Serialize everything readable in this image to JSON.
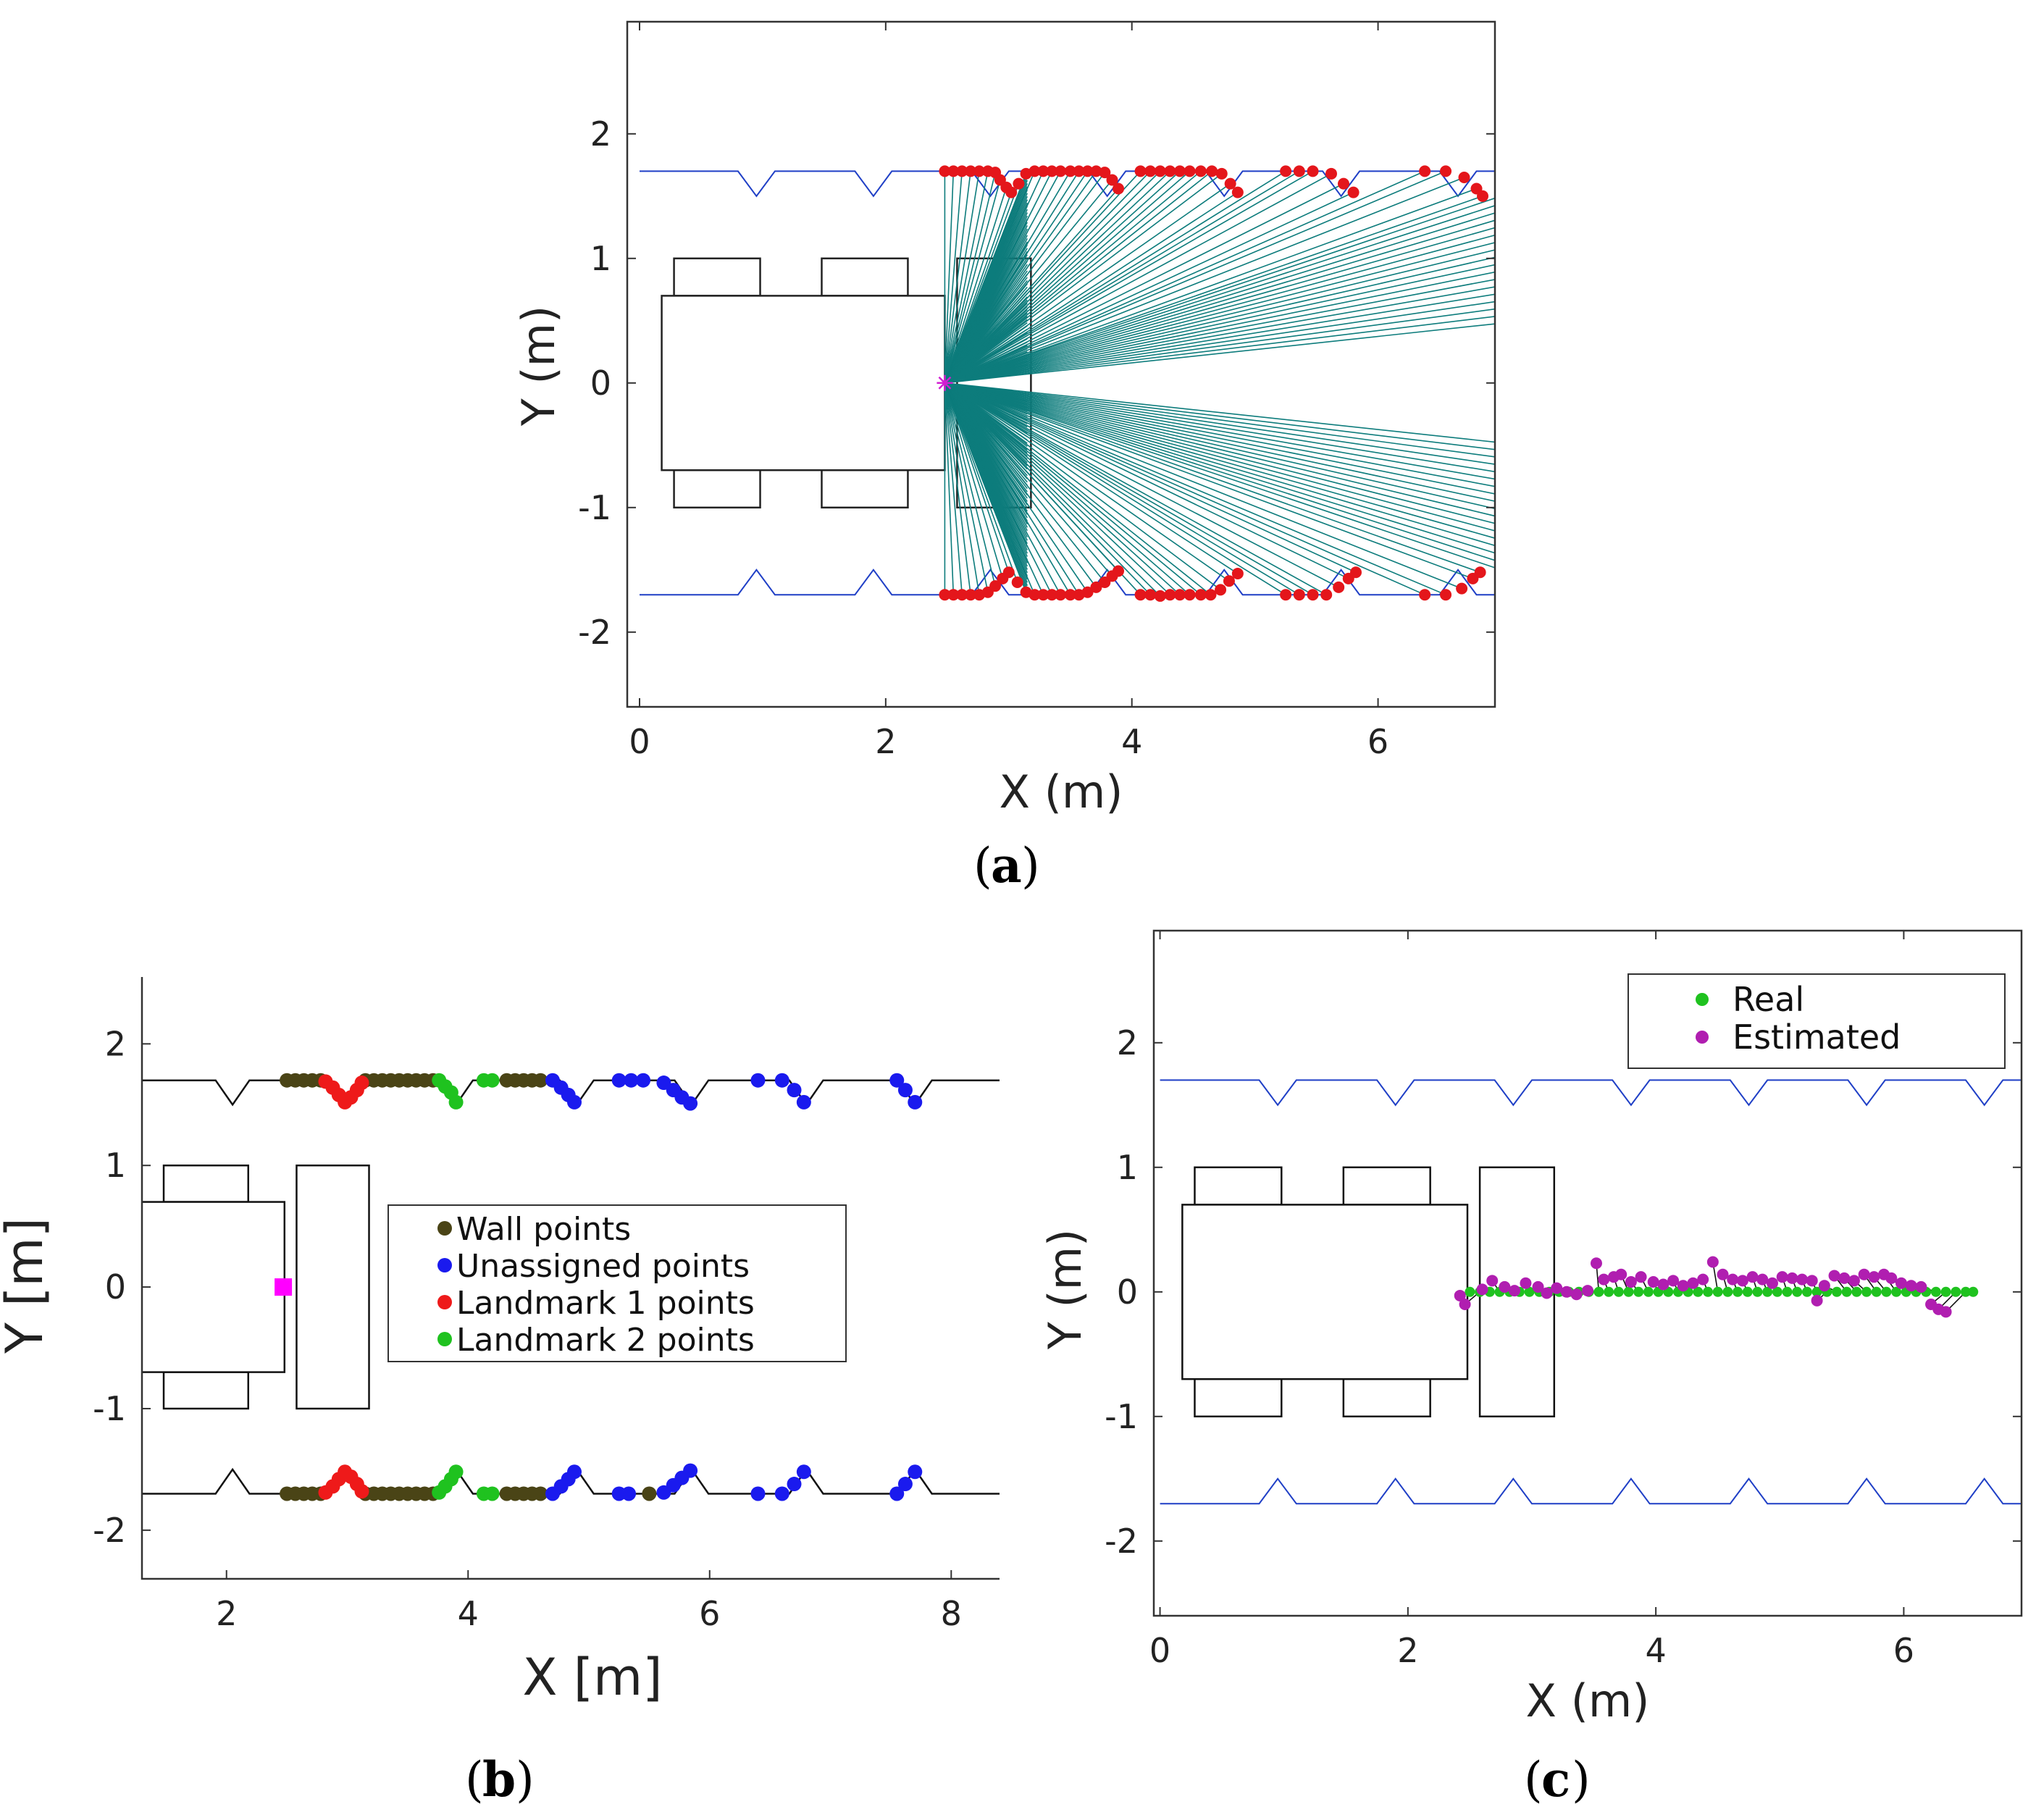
{
  "chart_data": [
    {
      "id": "a",
      "type": "scatter",
      "caption": "a",
      "xlabel": "X (m)",
      "ylabel": "Y (m)",
      "xlim": [
        -0.1,
        6.95
      ],
      "ylim": [
        -2.6,
        2.9
      ],
      "xticks": [
        0,
        2,
        4,
        6
      ],
      "yticks": [
        2,
        1,
        0,
        -1,
        -2
      ],
      "xtick_labels": [
        "0",
        "2",
        "4",
        "6"
      ],
      "ytick_labels": [
        "2",
        "1",
        "0",
        "-1",
        "-2"
      ],
      "sensor": [
        2.48,
        0
      ],
      "ray_color": "#0d7c7c",
      "wall_color": "#1f3fc6",
      "point_color": "#e4161b",
      "sensor_color": "#d21ed2",
      "detected_top": [
        [
          2.48,
          1.7
        ],
        [
          2.55,
          1.7
        ],
        [
          2.62,
          1.7
        ],
        [
          2.69,
          1.7
        ],
        [
          2.76,
          1.7
        ],
        [
          2.83,
          1.7
        ],
        [
          2.89,
          1.69
        ],
        [
          2.93,
          1.63
        ],
        [
          2.98,
          1.57
        ],
        [
          3.02,
          1.53
        ],
        [
          3.08,
          1.6
        ],
        [
          3.14,
          1.68
        ],
        [
          3.21,
          1.7
        ],
        [
          3.28,
          1.7
        ],
        [
          3.35,
          1.7
        ],
        [
          3.42,
          1.7
        ],
        [
          3.5,
          1.7
        ],
        [
          3.57,
          1.7
        ],
        [
          3.64,
          1.7
        ],
        [
          3.71,
          1.7
        ],
        [
          3.78,
          1.69
        ],
        [
          3.84,
          1.63
        ],
        [
          3.89,
          1.56
        ],
        [
          4.07,
          1.7
        ],
        [
          4.15,
          1.7
        ],
        [
          4.23,
          1.7
        ],
        [
          4.31,
          1.7
        ],
        [
          4.39,
          1.7
        ],
        [
          4.47,
          1.7
        ],
        [
          4.56,
          1.7
        ],
        [
          4.65,
          1.7
        ],
        [
          4.73,
          1.68
        ],
        [
          4.8,
          1.6
        ],
        [
          4.86,
          1.53
        ],
        [
          5.25,
          1.7
        ],
        [
          5.36,
          1.7
        ],
        [
          5.47,
          1.7
        ],
        [
          5.62,
          1.68
        ],
        [
          5.72,
          1.6
        ],
        [
          5.8,
          1.53
        ],
        [
          6.38,
          1.7
        ],
        [
          6.55,
          1.7
        ],
        [
          6.7,
          1.65
        ],
        [
          6.8,
          1.56
        ],
        [
          6.85,
          1.5
        ]
      ],
      "detected_bottom": [
        [
          2.48,
          -1.7
        ],
        [
          2.55,
          -1.7
        ],
        [
          2.62,
          -1.7
        ],
        [
          2.69,
          -1.7
        ],
        [
          2.76,
          -1.7
        ],
        [
          2.83,
          -1.68
        ],
        [
          2.89,
          -1.63
        ],
        [
          2.95,
          -1.57
        ],
        [
          3.0,
          -1.52
        ],
        [
          3.07,
          -1.6
        ],
        [
          3.14,
          -1.68
        ],
        [
          3.21,
          -1.7
        ],
        [
          3.28,
          -1.7
        ],
        [
          3.35,
          -1.7
        ],
        [
          3.42,
          -1.7
        ],
        [
          3.5,
          -1.7
        ],
        [
          3.57,
          -1.7
        ],
        [
          3.64,
          -1.68
        ],
        [
          3.71,
          -1.64
        ],
        [
          3.78,
          -1.6
        ],
        [
          3.84,
          -1.55
        ],
        [
          3.89,
          -1.51
        ],
        [
          4.07,
          -1.7
        ],
        [
          4.15,
          -1.7
        ],
        [
          4.23,
          -1.71
        ],
        [
          4.31,
          -1.7
        ],
        [
          4.39,
          -1.7
        ],
        [
          4.47,
          -1.7
        ],
        [
          4.56,
          -1.7
        ],
        [
          4.64,
          -1.7
        ],
        [
          4.72,
          -1.66
        ],
        [
          4.79,
          -1.59
        ],
        [
          4.86,
          -1.53
        ],
        [
          5.25,
          -1.7
        ],
        [
          5.36,
          -1.7
        ],
        [
          5.47,
          -1.7
        ],
        [
          5.58,
          -1.7
        ],
        [
          5.68,
          -1.64
        ],
        [
          5.76,
          -1.57
        ],
        [
          5.82,
          -1.52
        ],
        [
          6.38,
          -1.7
        ],
        [
          6.55,
          -1.7
        ],
        [
          6.68,
          -1.65
        ],
        [
          6.77,
          -1.57
        ],
        [
          6.83,
          -1.52
        ]
      ]
    },
    {
      "id": "b",
      "type": "scatter",
      "caption": "b",
      "xlabel": "X [m]",
      "ylabel": "Y [m]",
      "xlim": [
        1.3,
        8.4
      ],
      "ylim": [
        -2.4,
        2.55
      ],
      "xticks": [
        2,
        4,
        6,
        8
      ],
      "yticks": [
        2,
        1,
        0,
        -1,
        -2
      ],
      "xtick_labels": [
        "2",
        "4",
        "6",
        "8"
      ],
      "ytick_labels": [
        "2",
        "1",
        "0",
        "-1",
        "-2"
      ],
      "robot_marker": [
        2.47,
        0
      ],
      "robot_marker_color": "#ff00ff",
      "legend": [
        {
          "label": "Wall points",
          "color": "#4a4416"
        },
        {
          "label": "Unassigned points",
          "color": "#1a1aee"
        },
        {
          "label": "Landmark 1 points",
          "color": "#ee1a1a"
        },
        {
          "label": "Landmark 2 points",
          "color": "#1fc21f"
        }
      ],
      "series": [
        {
          "name": "Wall points",
          "color": "#4a4416",
          "points": [
            [
              2.5,
              1.7
            ],
            [
              2.57,
              1.7
            ],
            [
              2.64,
              1.7
            ],
            [
              2.71,
              1.7
            ],
            [
              2.78,
              1.7
            ],
            [
              3.15,
              1.7
            ],
            [
              3.22,
              1.7
            ],
            [
              3.29,
              1.7
            ],
            [
              3.36,
              1.7
            ],
            [
              3.43,
              1.7
            ],
            [
              3.5,
              1.7
            ],
            [
              3.57,
              1.7
            ],
            [
              3.64,
              1.7
            ],
            [
              3.71,
              1.7
            ],
            [
              4.32,
              1.7
            ],
            [
              4.39,
              1.7
            ],
            [
              4.46,
              1.7
            ],
            [
              4.53,
              1.7
            ],
            [
              4.6,
              1.7
            ],
            [
              2.5,
              -1.7
            ],
            [
              2.57,
              -1.7
            ],
            [
              2.64,
              -1.7
            ],
            [
              2.71,
              -1.7
            ],
            [
              2.78,
              -1.7
            ],
            [
              3.15,
              -1.7
            ],
            [
              3.22,
              -1.7
            ],
            [
              3.29,
              -1.7
            ],
            [
              3.36,
              -1.7
            ],
            [
              3.43,
              -1.7
            ],
            [
              3.5,
              -1.7
            ],
            [
              3.57,
              -1.7
            ],
            [
              3.64,
              -1.7
            ],
            [
              3.71,
              -1.7
            ],
            [
              4.32,
              -1.7
            ],
            [
              4.39,
              -1.7
            ],
            [
              4.46,
              -1.7
            ],
            [
              4.53,
              -1.7
            ],
            [
              4.6,
              -1.7
            ],
            [
              5.5,
              -1.7
            ]
          ]
        },
        {
          "name": "Unassigned points",
          "color": "#1a1aee",
          "points": [
            [
              4.7,
              1.7
            ],
            [
              4.77,
              1.64
            ],
            [
              4.83,
              1.58
            ],
            [
              4.88,
              1.52
            ],
            [
              5.25,
              1.7
            ],
            [
              5.35,
              1.7
            ],
            [
              5.45,
              1.7
            ],
            [
              5.62,
              1.68
            ],
            [
              5.7,
              1.62
            ],
            [
              5.77,
              1.56
            ],
            [
              5.84,
              1.51
            ],
            [
              6.4,
              1.7
            ],
            [
              6.6,
              1.7
            ],
            [
              6.7,
              1.62
            ],
            [
              6.78,
              1.52
            ],
            [
              7.55,
              1.7
            ],
            [
              7.62,
              1.62
            ],
            [
              7.7,
              1.52
            ],
            [
              4.7,
              -1.7
            ],
            [
              4.77,
              -1.64
            ],
            [
              4.83,
              -1.58
            ],
            [
              4.88,
              -1.52
            ],
            [
              5.25,
              -1.7
            ],
            [
              5.33,
              -1.7
            ],
            [
              5.62,
              -1.69
            ],
            [
              5.7,
              -1.63
            ],
            [
              5.77,
              -1.57
            ],
            [
              5.84,
              -1.51
            ],
            [
              6.4,
              -1.7
            ],
            [
              6.6,
              -1.7
            ],
            [
              6.7,
              -1.62
            ],
            [
              6.78,
              -1.52
            ],
            [
              7.55,
              -1.7
            ],
            [
              7.62,
              -1.62
            ],
            [
              7.7,
              -1.52
            ]
          ]
        },
        {
          "name": "Landmark 1 points",
          "color": "#ee1a1a",
          "points": [
            [
              2.82,
              1.69
            ],
            [
              2.88,
              1.64
            ],
            [
              2.93,
              1.58
            ],
            [
              2.98,
              1.52
            ],
            [
              3.03,
              1.56
            ],
            [
              3.08,
              1.62
            ],
            [
              3.12,
              1.68
            ],
            [
              2.82,
              -1.69
            ],
            [
              2.88,
              -1.64
            ],
            [
              2.93,
              -1.58
            ],
            [
              2.98,
              -1.52
            ],
            [
              3.03,
              -1.56
            ],
            [
              3.08,
              -1.62
            ],
            [
              3.12,
              -1.68
            ]
          ]
        },
        {
          "name": "Landmark 2 points",
          "color": "#1fc21f",
          "points": [
            [
              3.76,
              1.7
            ],
            [
              3.81,
              1.65
            ],
            [
              3.86,
              1.6
            ],
            [
              3.9,
              1.52
            ],
            [
              4.13,
              1.7
            ],
            [
              4.2,
              1.7
            ],
            [
              3.76,
              -1.69
            ],
            [
              3.81,
              -1.64
            ],
            [
              3.86,
              -1.58
            ],
            [
              3.9,
              -1.52
            ],
            [
              4.13,
              -1.7
            ],
            [
              4.2,
              -1.7
            ]
          ]
        }
      ]
    },
    {
      "id": "c",
      "type": "scatter",
      "caption": "c",
      "xlabel": "X (m)",
      "ylabel": "Y (m)",
      "xlim": [
        -0.05,
        6.95
      ],
      "ylim": [
        -2.6,
        2.9
      ],
      "xticks": [
        0,
        2,
        4,
        6
      ],
      "yticks": [
        2,
        1,
        0,
        -1,
        -2
      ],
      "xtick_labels": [
        "0",
        "2",
        "4",
        "6"
      ],
      "ytick_labels": [
        "2",
        "1",
        "0",
        "-1",
        "-2"
      ],
      "wall_color": "#1f3fc6",
      "legend": [
        {
          "label": "Real",
          "color": "#1fc21f"
        },
        {
          "label": "Estimated",
          "color": "#b01eb0"
        }
      ],
      "real_x": [
        2.5,
        2.58,
        2.66,
        2.74,
        2.82,
        2.9,
        2.98,
        3.06,
        3.14,
        3.22,
        3.3,
        3.38,
        3.46,
        3.54,
        3.62,
        3.7,
        3.78,
        3.86,
        3.94,
        4.02,
        4.1,
        4.18,
        4.26,
        4.34,
        4.42,
        4.5,
        4.58,
        4.66,
        4.74,
        4.82,
        4.9,
        4.98,
        5.06,
        5.14,
        5.22,
        5.3,
        5.38,
        5.46,
        5.54,
        5.62,
        5.7,
        5.78,
        5.86,
        5.94,
        6.02,
        6.1,
        6.18,
        6.26,
        6.34,
        6.42,
        6.5,
        6.56
      ],
      "estimated": [
        [
          2.42,
          -0.03
        ],
        [
          2.46,
          -0.1
        ],
        [
          2.6,
          0.02
        ],
        [
          2.68,
          0.09
        ],
        [
          2.78,
          0.04
        ],
        [
          2.86,
          0.01
        ],
        [
          2.95,
          0.07
        ],
        [
          3.05,
          0.04
        ],
        [
          3.12,
          -0.01
        ],
        [
          3.2,
          0.03
        ],
        [
          3.28,
          0.0
        ],
        [
          3.36,
          -0.02
        ],
        [
          3.45,
          0.01
        ],
        [
          3.52,
          0.23
        ],
        [
          3.58,
          0.1
        ],
        [
          3.66,
          0.12
        ],
        [
          3.72,
          0.14
        ],
        [
          3.8,
          0.08
        ],
        [
          3.88,
          0.12
        ],
        [
          3.98,
          0.08
        ],
        [
          4.06,
          0.06
        ],
        [
          4.14,
          0.09
        ],
        [
          4.22,
          0.05
        ],
        [
          4.3,
          0.07
        ],
        [
          4.38,
          0.1
        ],
        [
          4.46,
          0.24
        ],
        [
          4.54,
          0.14
        ],
        [
          4.62,
          0.1
        ],
        [
          4.7,
          0.09
        ],
        [
          4.78,
          0.12
        ],
        [
          4.86,
          0.1
        ],
        [
          4.94,
          0.07
        ],
        [
          5.02,
          0.12
        ],
        [
          5.1,
          0.11
        ],
        [
          5.18,
          0.1
        ],
        [
          5.26,
          0.09
        ],
        [
          5.3,
          -0.07
        ],
        [
          5.36,
          0.05
        ],
        [
          5.44,
          0.13
        ],
        [
          5.52,
          0.11
        ],
        [
          5.6,
          0.09
        ],
        [
          5.68,
          0.14
        ],
        [
          5.76,
          0.12
        ],
        [
          5.84,
          0.14
        ],
        [
          5.9,
          0.11
        ],
        [
          5.98,
          0.07
        ],
        [
          6.06,
          0.05
        ],
        [
          6.14,
          0.04
        ],
        [
          6.22,
          -0.1
        ],
        [
          6.28,
          -0.14
        ],
        [
          6.34,
          -0.16
        ]
      ]
    }
  ]
}
